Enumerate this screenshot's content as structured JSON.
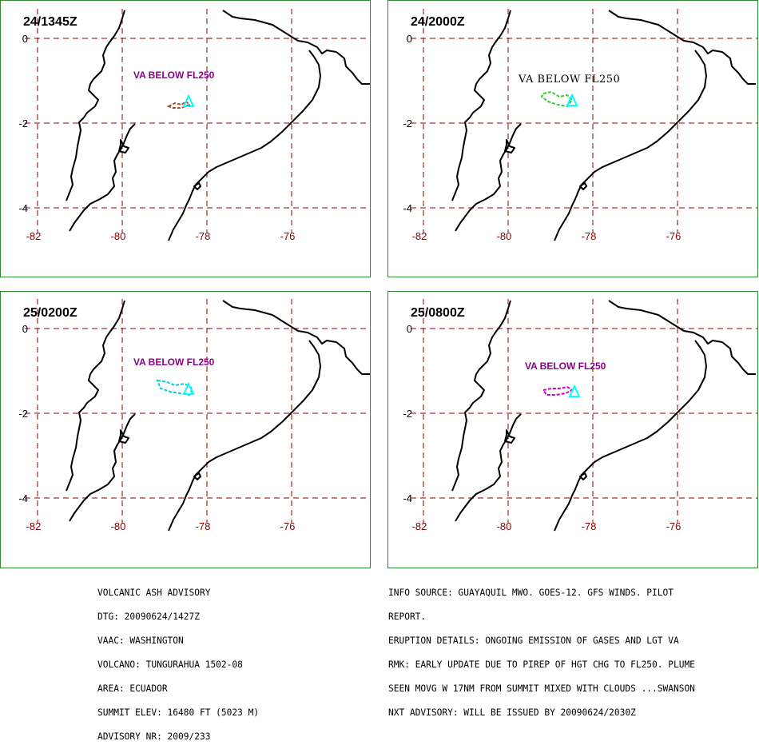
{
  "panels": [
    {
      "time": "24/1345Z",
      "va_label": "VA BELOW FL250",
      "plume_color": "#a0522d",
      "label_style": "bold"
    },
    {
      "time": "24/2000Z",
      "va_label": "VA BELOW FL250",
      "plume_color": "#32cd32",
      "label_style": "mono"
    },
    {
      "time": "25/0200Z",
      "va_label": "VA BELOW FL250",
      "plume_color": "#00ced1",
      "label_style": "bold"
    },
    {
      "time": "25/0800Z",
      "va_label": "VA BELOW FL250",
      "plume_color": "#cc00cc",
      "label_style": "bold"
    }
  ],
  "axes": {
    "lat_labels": [
      "0",
      "-2",
      "-4"
    ],
    "lon_labels": [
      "-82",
      "-80",
      "-78",
      "-76"
    ]
  },
  "colors": {
    "coast": "#000000",
    "grid": "#8b0000",
    "border": "#2e8b2e",
    "volcano": "#00ffff",
    "va_text": "#8b008b"
  },
  "advisory_left": [
    "VOLCANIC ASH ADVISORY",
    "DTG: 20090624/1427Z",
    "VAAC: WASHINGTON",
    "VOLCANO: TUNGURAHUA 1502-08",
    "AREA: ECUADOR",
    "SUMMIT ELEV: 16480 FT (5023 M)",
    "ADVISORY NR: 2009/233"
  ],
  "advisory_right": [
    "INFO SOURCE: GUAYAQUIL MWO. GOES-12. GFS WINDS. PILOT",
    "REPORT.",
    "ERUPTION DETAILS: ONGOING EMISSION OF GASES AND LGT VA",
    "RMK: EARLY UPDATE DUE TO PIREP OF HGT CHG TO FL250. PLUME",
    "SEEN MOVG W 17NM FROM SUMMIT MIXED WITH CLOUDS ...SWANSON",
    "NXT ADVISORY: WILL BE ISSUED BY 20090624/2030Z"
  ]
}
